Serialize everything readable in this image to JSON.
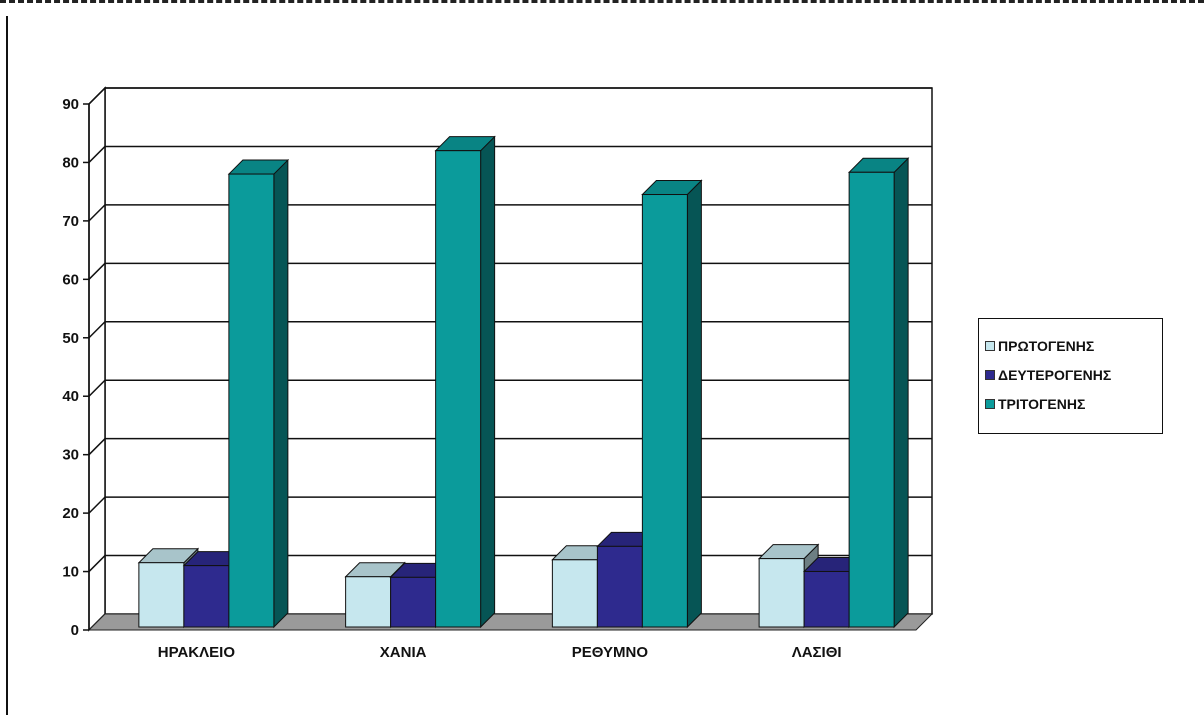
{
  "chart_data": {
    "type": "bar",
    "title": "",
    "xlabel": "",
    "ylabel": "",
    "ylim": [
      0,
      90
    ],
    "yticks": [
      0,
      10,
      20,
      30,
      40,
      50,
      60,
      70,
      80,
      90
    ],
    "grid": true,
    "three_d": true,
    "legend_position": "right",
    "categories": [
      "ΗΡΑΚΛΕΙΟ",
      "ΧΑΝΙΑ",
      "ΡΕΘΥΜΝΟ",
      "ΛΑΣΙΘΙ"
    ],
    "series": [
      {
        "name": "ΠΡΩΤΟΓΕΝΗΣ",
        "values": [
          11,
          8.6,
          11.5,
          11.7
        ],
        "color": "#c6e7ee"
      },
      {
        "name": "ΔΕΥΤΕΡΟΓΕΝΗΣ",
        "values": [
          10.5,
          8.5,
          13.8,
          9.5
        ],
        "color": "#2e2a8e"
      },
      {
        "name": "ΤΡΙΤΟΓΕΝΗΣ",
        "values": [
          77.5,
          81.5,
          74,
          77.8
        ],
        "color": "#0b9b9b"
      }
    ]
  }
}
